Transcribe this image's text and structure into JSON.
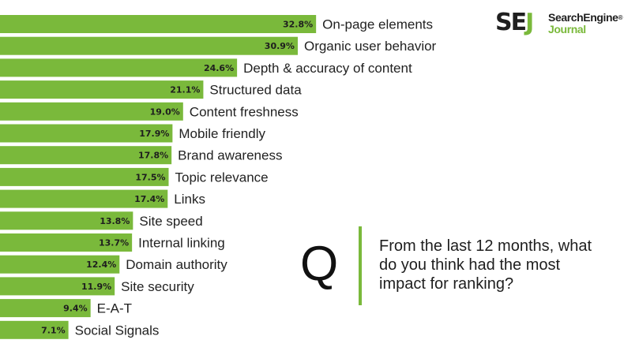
{
  "logo": {
    "mark_se": "SE",
    "mark_j": "J",
    "line1": "SearchEngine",
    "registered": "®",
    "line2": "Journal"
  },
  "question": {
    "letter": "Q",
    "text": "From the last 12 months, what do you think had the most impact for ranking?"
  },
  "colors": {
    "bar": "#7ab93b",
    "text": "#1e1e1e"
  },
  "chart_data": {
    "type": "bar",
    "orientation": "horizontal",
    "categories": [
      "On-page elements",
      "Organic user behavior",
      "Depth & accuracy of content",
      "Structured data",
      "Content freshness",
      "Mobile friendly",
      "Brand awareness",
      "Topic relevance",
      "Links",
      "Site speed",
      "Internal linking",
      "Domain authority",
      "Site security",
      "E-A-T",
      "Social Signals"
    ],
    "values": [
      32.8,
      30.9,
      24.6,
      21.1,
      19.0,
      17.9,
      17.8,
      17.5,
      17.4,
      13.8,
      13.7,
      12.4,
      11.9,
      9.4,
      7.1
    ],
    "value_labels": [
      "32.8%",
      "30.9%",
      "24.6%",
      "21.1%",
      "19.0%",
      "17.9%",
      "17.8%",
      "17.5%",
      "17.4%",
      "13.8%",
      "13.7%",
      "12.4%",
      "11.9%",
      "9.4%",
      "7.1%"
    ],
    "unit": "%",
    "grid": false,
    "legend": "none"
  }
}
